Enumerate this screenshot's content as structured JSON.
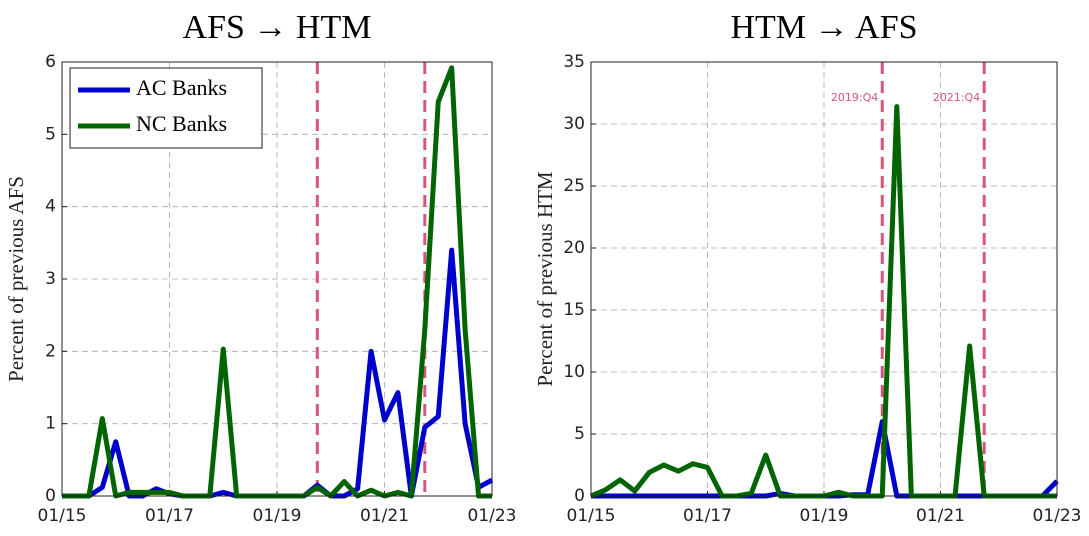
{
  "chart_data": [
    {
      "type": "line",
      "title": "AFS → HTM",
      "y_label": "Percent of previous AFS",
      "x": [
        "01/15",
        "04/15",
        "07/15",
        "10/15",
        "01/16",
        "04/16",
        "07/16",
        "10/16",
        "01/17",
        "04/17",
        "07/17",
        "10/17",
        "01/18",
        "04/18",
        "07/18",
        "10/18",
        "01/19",
        "04/19",
        "07/19",
        "10/19",
        "01/20",
        "04/20",
        "07/20",
        "10/20",
        "01/21",
        "04/21",
        "07/21",
        "10/21",
        "01/22",
        "04/22",
        "07/22",
        "10/22",
        "01/23"
      ],
      "series": [
        {
          "name": "AC Banks",
          "color": "#0000cc",
          "values": [
            0,
            0,
            0,
            0.12,
            0.75,
            0,
            0,
            0.1,
            0.03,
            0,
            0,
            0,
            0.05,
            0,
            0,
            0,
            0,
            0,
            0,
            0.15,
            0,
            0,
            0.1,
            2.0,
            1.05,
            1.43,
            0,
            0.95,
            1.1,
            3.4,
            1.0,
            0.12,
            0.22
          ]
        },
        {
          "name": "NC Banks",
          "color": "#006400",
          "values": [
            0,
            0,
            0,
            1.07,
            0,
            0.05,
            0.05,
            0.05,
            0.05,
            0,
            0,
            0,
            2.03,
            0,
            0,
            0,
            0,
            0,
            0,
            0.12,
            0,
            0.2,
            0,
            0.08,
            0,
            0.05,
            0,
            2.3,
            5.45,
            5.92,
            2.3,
            0,
            0
          ]
        }
      ],
      "vlines": [
        {
          "x": "10/19"
        },
        {
          "x": "10/21"
        }
      ],
      "vline_color": "#d9557a",
      "xlim": [
        "01/15",
        "01/23"
      ],
      "xticks": [
        "01/15",
        "01/17",
        "01/19",
        "01/21",
        "01/23"
      ],
      "ylim": [
        0,
        6
      ],
      "yticks": [
        0,
        1,
        2,
        3,
        4,
        5,
        6
      ],
      "grid": true,
      "legend": "upper-left"
    },
    {
      "type": "line",
      "title": "HTM → AFS",
      "y_label": "Percent of previous HTM",
      "x": [
        "01/15",
        "04/15",
        "07/15",
        "10/15",
        "01/16",
        "04/16",
        "07/16",
        "10/16",
        "01/17",
        "04/17",
        "07/17",
        "10/17",
        "01/18",
        "04/18",
        "07/18",
        "10/18",
        "01/19",
        "04/19",
        "07/19",
        "10/19",
        "01/20",
        "04/20",
        "07/20",
        "10/20",
        "01/21",
        "04/21",
        "07/21",
        "10/21",
        "01/22",
        "04/22",
        "07/22",
        "10/22",
        "01/23"
      ],
      "series": [
        {
          "name": "AC Banks",
          "color": "#0000cc",
          "values": [
            0,
            0,
            0,
            0,
            0,
            0,
            0,
            0,
            0,
            0,
            0,
            0,
            0,
            0.2,
            0,
            0,
            0,
            0,
            0.1,
            0.1,
            6.0,
            0,
            0,
            0,
            0,
            0,
            0,
            0,
            0,
            0,
            0,
            0,
            1.2
          ]
        },
        {
          "name": "NC Banks",
          "color": "#006400",
          "values": [
            0,
            0.5,
            1.3,
            0.4,
            1.9,
            2.5,
            2.0,
            2.6,
            2.3,
            0,
            0,
            0.2,
            3.3,
            0,
            0,
            0,
            0,
            0.3,
            0,
            0,
            0,
            31.4,
            0,
            0,
            0,
            0,
            12.1,
            0,
            0,
            0,
            0,
            0,
            0
          ]
        }
      ],
      "vlines": [
        {
          "x": "01/20",
          "label": "2019:Q4"
        },
        {
          "x": "10/21",
          "label": "2021:Q4"
        }
      ],
      "vline_color": "#d9557a",
      "xlim": [
        "01/15",
        "01/23"
      ],
      "xticks": [
        "01/15",
        "01/17",
        "01/19",
        "01/21",
        "01/23"
      ],
      "ylim": [
        0,
        35
      ],
      "yticks": [
        0,
        5,
        10,
        15,
        20,
        25,
        30,
        35
      ],
      "grid": true,
      "legend": "none"
    }
  ]
}
